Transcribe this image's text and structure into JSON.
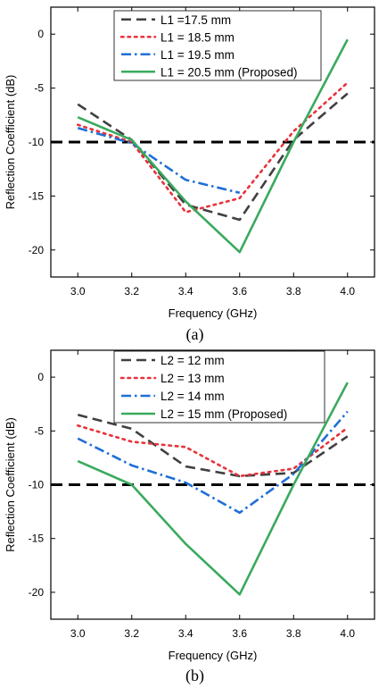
{
  "chart_data": [
    {
      "type": "line",
      "caption": "(a)",
      "xlabel": "Frequency (GHz)",
      "ylabel": "Reflection Coefficient (dB)",
      "xlim": [
        2.9,
        4.1
      ],
      "ylim": [
        -22.5,
        2.5
      ],
      "xticks": [
        "3.0",
        "3.2",
        "3.4",
        "3.6",
        "3.8",
        "4.0"
      ],
      "yticks": [
        "0",
        "-5",
        "-10",
        "-15",
        "-20"
      ],
      "legend_position": "top",
      "reference_line": {
        "y": -10,
        "style": "dashed",
        "color": "#000000"
      },
      "x": [
        3.0,
        3.2,
        3.4,
        3.6,
        3.8,
        4.0
      ],
      "series": [
        {
          "name": "L1 =17.5 mm",
          "color": "#404040",
          "dash": "dash",
          "values": [
            -6.5,
            -9.8,
            -15.8,
            -17.2,
            -9.8,
            -5.5
          ]
        },
        {
          "name": "L1 = 18.5 mm",
          "color": "#e8323a",
          "dash": "dot",
          "values": [
            -8.4,
            -10.0,
            -16.5,
            -15.2,
            -9.0,
            -4.5
          ]
        },
        {
          "name": "L1 = 19.5 mm",
          "color": "#1f6fd6",
          "dash": "dashdot",
          "values": [
            -8.7,
            -10.1,
            -13.5,
            -14.7,
            null,
            null
          ]
        },
        {
          "name": "L1 = 20.5 mm (Proposed)",
          "color": "#3aaa5e",
          "dash": "solid",
          "values": [
            -7.7,
            -9.8,
            -15.5,
            -20.2,
            -10.0,
            -0.5
          ]
        }
      ]
    },
    {
      "type": "line",
      "caption": "(b)",
      "xlabel": "Frequency (GHz)",
      "ylabel": "Reflection Coefficient (dB)",
      "xlim": [
        2.9,
        4.1
      ],
      "ylim": [
        -22.5,
        2.5
      ],
      "xticks": [
        "3.0",
        "3.2",
        "3.4",
        "3.6",
        "3.8",
        "4.0"
      ],
      "yticks": [
        "0",
        "-5",
        "-10",
        "-15",
        "-20"
      ],
      "legend_position": "top",
      "reference_line": {
        "y": -10,
        "style": "dashed",
        "color": "#000000"
      },
      "x": [
        3.0,
        3.2,
        3.4,
        3.6,
        3.8,
        4.0
      ],
      "series": [
        {
          "name": "L2 = 12 mm",
          "color": "#404040",
          "dash": "dash",
          "values": [
            -3.5,
            -4.8,
            -8.3,
            -9.2,
            -8.9,
            -5.5
          ]
        },
        {
          "name": "L2 = 13 mm",
          "color": "#e8323a",
          "dash": "dot",
          "values": [
            -4.5,
            -6.0,
            -6.5,
            -9.2,
            -8.5,
            -4.7
          ]
        },
        {
          "name": "L2 = 14 mm",
          "color": "#1f6fd6",
          "dash": "dashdot",
          "values": [
            -5.7,
            -8.2,
            -9.8,
            -12.6,
            -9.0,
            -3.2
          ]
        },
        {
          "name": "L2 = 15 mm (Proposed)",
          "color": "#3aaa5e",
          "dash": "solid",
          "values": [
            -7.8,
            -10.0,
            -15.5,
            -20.2,
            -10.0,
            -0.5
          ]
        }
      ]
    }
  ]
}
